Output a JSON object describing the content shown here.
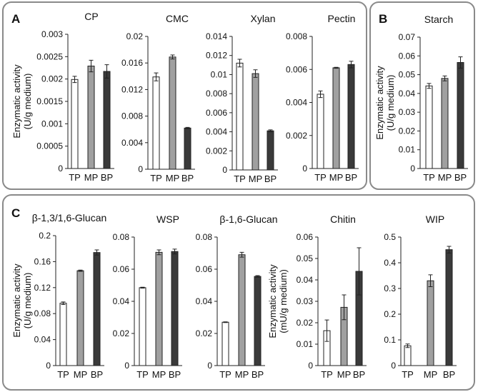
{
  "panel_labels": [
    "A",
    "B",
    "C"
  ],
  "chart_data": [
    {
      "type": "bar",
      "panel": "A",
      "title": "CP",
      "categories": [
        "TP",
        "MP",
        "BP"
      ],
      "values": [
        0.00199,
        0.00229,
        0.00217
      ],
      "errors": [
        7e-05,
        0.00013,
        0.00015
      ],
      "ylim": [
        0,
        0.003
      ],
      "yticks": [
        "0",
        "0.0005",
        "0.001",
        "0.0015",
        "0.002",
        "0.0025",
        "0.003"
      ],
      "ylabel": [
        "Enzymatic activity",
        "(U/g medium)"
      ]
    },
    {
      "type": "bar",
      "panel": "A",
      "title": "CMC",
      "categories": [
        "TP",
        "MP",
        "BP"
      ],
      "values": [
        0.0139,
        0.0169,
        0.0062
      ],
      "errors": [
        0.0006,
        0.0003,
        0.0001
      ],
      "ylim": [
        0,
        0.02
      ],
      "yticks": [
        "0",
        "0.004",
        "0.008",
        "0.012",
        "0.016",
        "0.02"
      ]
    },
    {
      "type": "bar",
      "panel": "A",
      "title": "Xylan",
      "categories": [
        "TP",
        "MP",
        "BP"
      ],
      "values": [
        0.0112,
        0.0101,
        0.0041
      ],
      "errors": [
        0.0004,
        0.0004,
        0.0001
      ],
      "ylim": [
        0,
        0.014
      ],
      "yticks": [
        "0",
        "0.002",
        "0.004",
        "0.006",
        "0.008",
        "0.01",
        "0.012",
        "0.014"
      ]
    },
    {
      "type": "bar",
      "panel": "A",
      "title": "Pectin",
      "categories": [
        "TP",
        "MP",
        "BP"
      ],
      "values": [
        0.0045,
        0.0061,
        0.0063
      ],
      "errors": [
        0.0002,
        3e-05,
        0.0002
      ],
      "ylim": [
        0,
        0.008
      ],
      "yticks": [
        "0",
        "0.002",
        "0.004",
        "0.006",
        "0.008"
      ]
    },
    {
      "type": "bar",
      "panel": "B",
      "title": "Starch",
      "categories": [
        "TP",
        "MP",
        "BP"
      ],
      "values": [
        0.044,
        0.048,
        0.0565
      ],
      "errors": [
        0.0013,
        0.0013,
        0.003
      ],
      "ylim": [
        0,
        0.07
      ],
      "yticks": [
        "0",
        "0.01",
        "0.02",
        "0.03",
        "0.04",
        "0.05",
        "0.06",
        "0.07"
      ],
      "ylabel": [
        "Enzymatic activity",
        "(U/g medium)"
      ]
    },
    {
      "type": "bar",
      "panel": "C",
      "title": "β-1,3/1,6-Glucan",
      "categories": [
        "TP",
        "MP",
        "BP"
      ],
      "values": [
        0.096,
        0.146,
        0.174
      ],
      "errors": [
        0.002,
        0.001,
        0.004
      ],
      "ylim": [
        0,
        0.2
      ],
      "yticks": [
        "0",
        "0.04",
        "0.08",
        "0.12",
        "0.16",
        "0.2"
      ],
      "ylabel": [
        "Enzymatic activity",
        "(U/g medium)"
      ]
    },
    {
      "type": "bar",
      "panel": "C",
      "title": "WSP",
      "categories": [
        "TP",
        "MP",
        "BP"
      ],
      "values": [
        0.0485,
        0.0705,
        0.071
      ],
      "errors": [
        0.0003,
        0.0015,
        0.0015
      ],
      "ylim": [
        0,
        0.08
      ],
      "yticks": [
        "0",
        "0.02",
        "0.04",
        "0.06",
        "0.08"
      ]
    },
    {
      "type": "bar",
      "panel": "C",
      "title": "β-1,6-Glucan",
      "categories": [
        "TP",
        "MP",
        "BP"
      ],
      "values": [
        0.027,
        0.069,
        0.0555
      ],
      "errors": [
        0.0002,
        0.0015,
        0.0005
      ],
      "ylim": [
        0,
        0.08
      ],
      "yticks": [
        "0",
        "0.02",
        "0.04",
        "0.06",
        "0.08"
      ]
    },
    {
      "type": "bar",
      "panel": "C",
      "title": "Chitin",
      "categories": [
        "TP",
        "MP",
        "BP"
      ],
      "values": [
        0.0163,
        0.0272,
        0.044
      ],
      "errors": [
        0.005,
        0.0058,
        0.011
      ],
      "ylim": [
        0,
        0.06
      ],
      "yticks": [
        "0",
        "0.01",
        "0.02",
        "0.03",
        "0.04",
        "0.05",
        "0.06"
      ],
      "ylabel": [
        "Enzymatic activity",
        "(mU/g medium)"
      ]
    },
    {
      "type": "bar",
      "panel": "C",
      "title": "WIP",
      "categories": [
        "TP",
        "MP",
        "BP"
      ],
      "values": [
        0.077,
        0.33,
        0.451
      ],
      "errors": [
        0.007,
        0.023,
        0.013
      ],
      "ylim": [
        0,
        0.5
      ],
      "yticks": [
        "0",
        "0.1",
        "0.2",
        "0.3",
        "0.4",
        "0.5"
      ]
    }
  ],
  "colors": {
    "TP": "#ffffff",
    "MP": "#a0a0a0",
    "BP": "#3a3a3a"
  }
}
